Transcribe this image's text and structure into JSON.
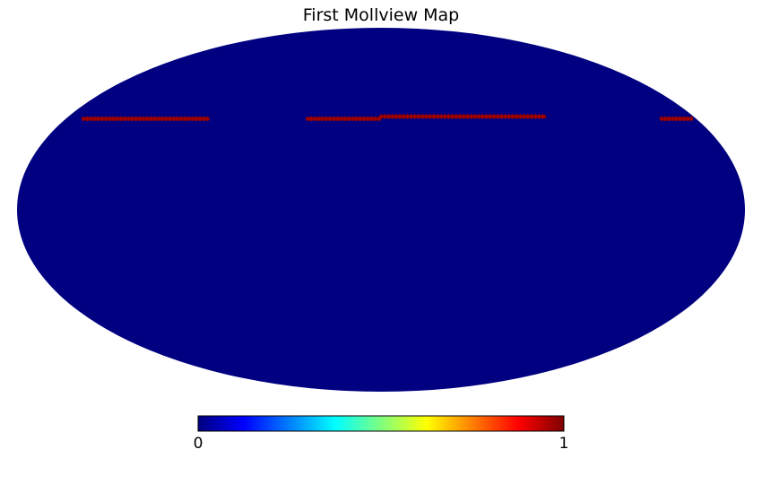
{
  "chart_data": {
    "type": "heatmap",
    "projection": "mollweide",
    "title": "First Mollview Map",
    "background_value": 0,
    "colormap": "jet",
    "colors": {
      "map_background": "#000080",
      "highlight": "#800000",
      "highlight_dot": "#a00000"
    },
    "highlight_value": 1,
    "highlight_segments": [
      {
        "lat": 37.5,
        "lon_start": 170,
        "lon_end": 98
      },
      {
        "lat": 37.5,
        "lon_start": 42,
        "lon_end": 0
      },
      {
        "lat": 38.5,
        "lon_start": 0,
        "lon_end": -95
      },
      {
        "lat": 37.5,
        "lon_start": -160,
        "lon_end": -178
      }
    ],
    "colorbar": {
      "min": 0,
      "max": 1,
      "tick_labels": [
        "0",
        "1"
      ],
      "orientation": "horizontal",
      "stops": [
        "#00007f",
        "#0000ff",
        "#007fff",
        "#00ffff",
        "#7fff7f",
        "#ffff00",
        "#ff7f00",
        "#ff0000",
        "#7f0000"
      ]
    }
  }
}
